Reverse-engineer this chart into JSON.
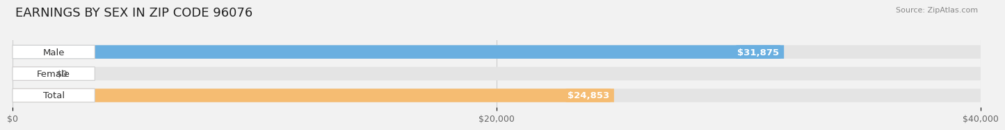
{
  "title": "EARNINGS BY SEX IN ZIP CODE 96076",
  "source": "Source: ZipAtlas.com",
  "categories": [
    "Male",
    "Female",
    "Total"
  ],
  "values": [
    31875,
    0,
    24853
  ],
  "female_stub": 1200,
  "bar_colors": [
    "#6aafe0",
    "#f49bb5",
    "#f5bc72"
  ],
  "value_labels": [
    "$31,875",
    "$0",
    "$24,853"
  ],
  "value_label_colors": [
    "white",
    "black",
    "white"
  ],
  "xlim": [
    0,
    40000
  ],
  "xtick_vals": [
    0,
    20000,
    40000
  ],
  "xtick_labels": [
    "$0",
    "$20,000",
    "$40,000"
  ],
  "background_color": "#f2f2f2",
  "bar_bg_color": "#e4e4e4",
  "title_fontsize": 13,
  "bar_height": 0.62,
  "label_fontsize": 9.5,
  "tick_fontsize": 9
}
